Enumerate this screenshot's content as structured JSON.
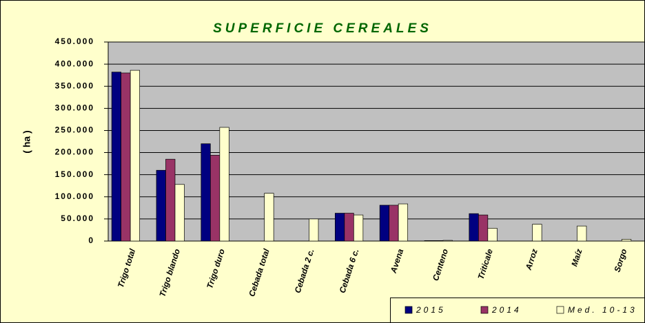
{
  "chart_data": {
    "type": "bar",
    "title": "SUPERFICIE CEREALES",
    "y_label": "( ha )",
    "categories": [
      "Trigo total",
      "Trigo blando",
      "Trigo duro",
      "Cebada total",
      "Cebada 2 c.",
      "Cebada 6 c.",
      "Avena",
      "Centeno",
      "Triticale",
      "Arroz",
      "Maíz",
      "Sorgo"
    ],
    "series": [
      {
        "name": "2015",
        "color": "#000080",
        "values": [
          382000,
          160000,
          220000,
          null,
          null,
          63000,
          81000,
          1000,
          62000,
          null,
          null,
          null
        ]
      },
      {
        "name": "2014",
        "color": "#993366",
        "values": [
          380000,
          185000,
          194000,
          null,
          null,
          63000,
          81000,
          1000,
          59000,
          null,
          null,
          null
        ]
      },
      {
        "name": "Med. 10-13",
        "color": "#ffffcc",
        "values": [
          386000,
          128000,
          257000,
          108000,
          50000,
          59000,
          84000,
          1500,
          29000,
          38000,
          34000,
          4000
        ]
      }
    ],
    "ylim": [
      0,
      450000
    ],
    "yticks": [
      0,
      {
        "value": 50000,
        "label": "50.000"
      },
      {
        "value": 100000,
        "label": "100.000"
      },
      {
        "value": 150000,
        "label": "150.000"
      },
      {
        "value": 200000,
        "label": "200.000"
      },
      {
        "value": 250000,
        "label": "250.000"
      },
      {
        "value": 300000,
        "label": "300.000"
      },
      {
        "value": 350000,
        "label": "350.000"
      },
      {
        "value": 400000,
        "label": "400.000"
      },
      {
        "value": 450000,
        "label": "450.000"
      }
    ],
    "grid": true,
    "legend": "bottom-right"
  }
}
